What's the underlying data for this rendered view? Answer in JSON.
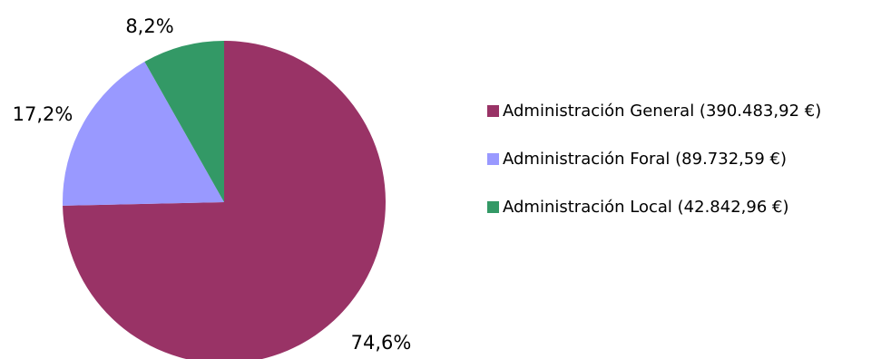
{
  "chart_data": {
    "type": "pie",
    "title": "",
    "start_angle_deg": 0,
    "direction": "clockwise",
    "slices": [
      {
        "name": "Administración General",
        "value": 390483.92,
        "percent_label": "74,6%",
        "color": "#993366",
        "legend_label": "Administración General (390.483,92 €)"
      },
      {
        "name": "Administración Foral",
        "value": 89732.59,
        "percent_label": "17,2%",
        "color": "#9999ff",
        "legend_label": "Administración Foral (89.732,59 €)"
      },
      {
        "name": "Administración Local",
        "value": 42842.96,
        "percent_label": "8,2%",
        "color": "#339966",
        "legend_label": "Administración Local (42.842,96 €)"
      }
    ],
    "legend_position": "right"
  }
}
